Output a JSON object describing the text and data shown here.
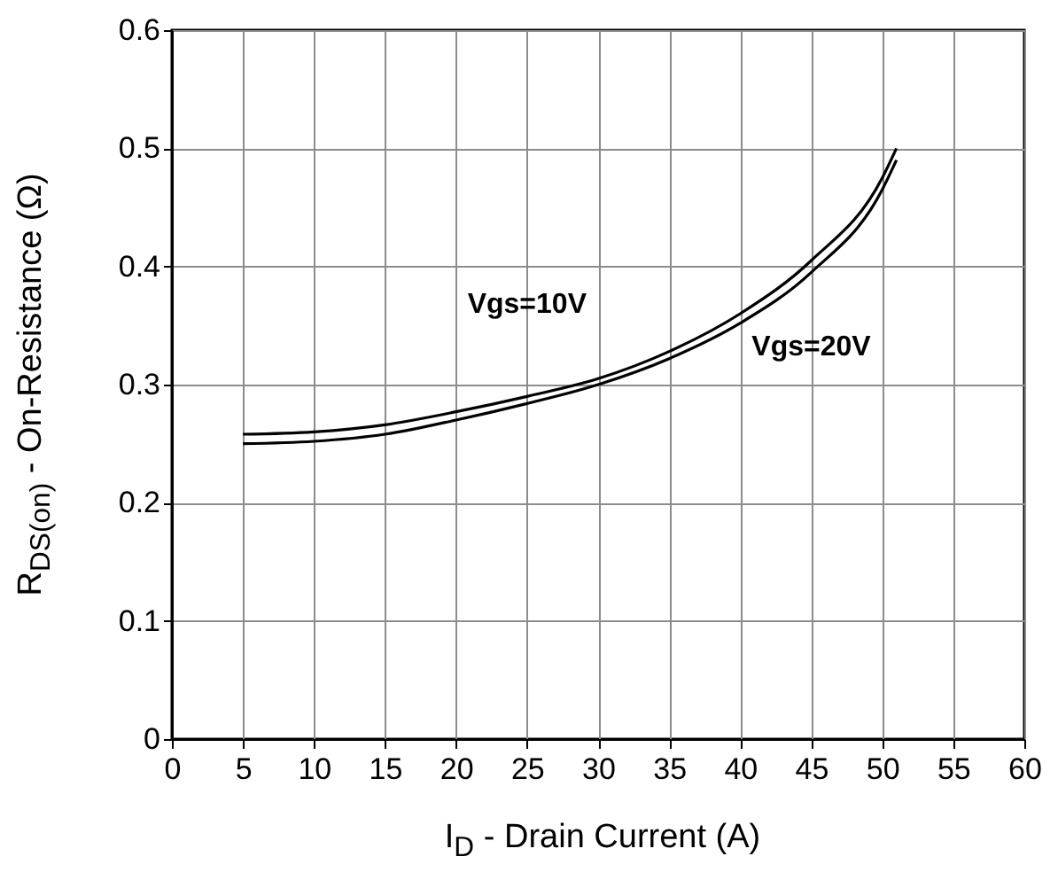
{
  "chart_data": {
    "type": "line",
    "xlabel": "I$_{D}$ - Drain Current (A)",
    "ylabel": "R$_{DS(on)}$ - On-Resistance (Ω)",
    "x": [
      5,
      10,
      15,
      20,
      25,
      30,
      35,
      40,
      45,
      50,
      51
    ],
    "series": [
      {
        "name": "Vgs=10V",
        "color": "#000000",
        "values": [
          0.258,
          0.26,
          0.266,
          0.277,
          0.29,
          0.305,
          0.328,
          0.36,
          0.405,
          0.475,
          0.5
        ]
      },
      {
        "name": "Vgs=20V",
        "color": "#000000",
        "values": [
          0.25,
          0.252,
          0.258,
          0.27,
          0.284,
          0.3,
          0.322,
          0.352,
          0.395,
          0.465,
          0.49
        ]
      }
    ],
    "xlim": [
      0,
      60
    ],
    "xticks": [
      0,
      5,
      10,
      15,
      20,
      25,
      30,
      35,
      40,
      45,
      50,
      55,
      60
    ],
    "ylim": [
      0,
      0.6
    ],
    "yticks": [
      0,
      0.1,
      0.2,
      0.3,
      0.4,
      0.5,
      0.6
    ],
    "grid": true,
    "legend": false,
    "marker": "none",
    "line_style": "solid"
  }
}
